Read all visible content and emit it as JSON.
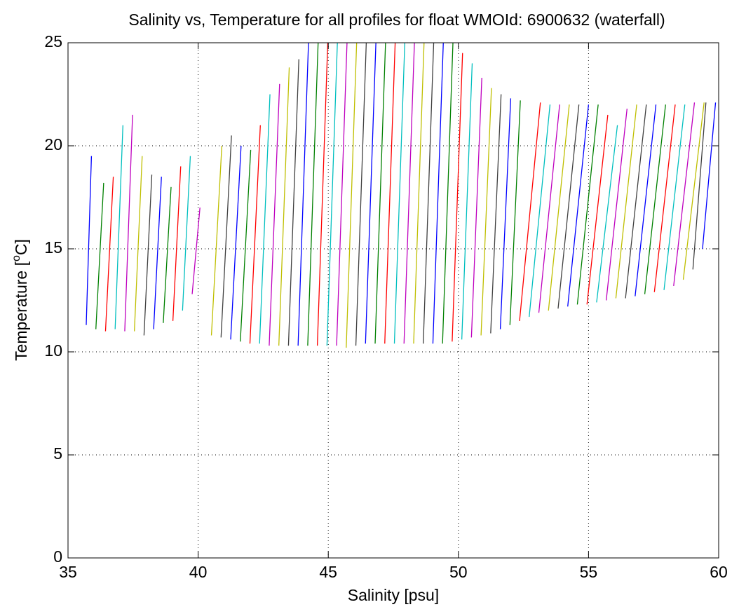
{
  "chart_data": {
    "type": "line",
    "title": "Salinity vs, Temperature for all profiles for float WMOId: 6900632 (waterfall)",
    "xlabel": "Salinity [psu]",
    "ylabel": {
      "text": "Temperature [",
      "sup": "o",
      "unit": "C]"
    },
    "xlim": [
      35,
      60
    ],
    "xticks": [
      35,
      40,
      45,
      50,
      55,
      60
    ],
    "ylim": [
      0,
      25
    ],
    "yticks": [
      0,
      5,
      10,
      15,
      20,
      25
    ],
    "grid": true,
    "series": [
      {
        "color": "#0000ff",
        "x": [
          35.7,
          35.9
        ],
        "y": [
          11.3,
          19.5
        ]
      },
      {
        "color": "#008000",
        "x": [
          36.07,
          36.37
        ],
        "y": [
          11.1,
          18.2
        ]
      },
      {
        "color": "#ff0000",
        "x": [
          36.44,
          36.74
        ],
        "y": [
          11.0,
          18.5
        ]
      },
      {
        "color": "#00bfbf",
        "x": [
          36.81,
          37.11
        ],
        "y": [
          11.1,
          21.0
        ]
      },
      {
        "color": "#bf00bf",
        "x": [
          37.18,
          37.48
        ],
        "y": [
          11.0,
          21.5
        ]
      },
      {
        "color": "#bfbf00",
        "x": [
          37.55,
          37.85
        ],
        "y": [
          11.0,
          19.5
        ]
      },
      {
        "color": "#404040",
        "x": [
          37.92,
          38.22
        ],
        "y": [
          10.8,
          18.6
        ]
      },
      {
        "color": "#0000ff",
        "x": [
          38.29,
          38.59
        ],
        "y": [
          11.1,
          18.5
        ]
      },
      {
        "color": "#008000",
        "x": [
          38.66,
          38.96
        ],
        "y": [
          11.4,
          18.0
        ]
      },
      {
        "color": "#ff0000",
        "x": [
          39.03,
          39.33
        ],
        "y": [
          11.5,
          19.0
        ]
      },
      {
        "color": "#00bfbf",
        "x": [
          39.4,
          39.7
        ],
        "y": [
          12.0,
          19.5
        ]
      },
      {
        "color": "#bf00bf",
        "x": [
          39.77,
          40.07
        ],
        "y": [
          12.8,
          17.0
        ]
      },
      {
        "color": "#bfbf00",
        "x": [
          40.51,
          40.91
        ],
        "y": [
          10.8,
          20.0
        ]
      },
      {
        "color": "#404040",
        "x": [
          40.88,
          41.28
        ],
        "y": [
          10.7,
          20.5
        ]
      },
      {
        "color": "#0000ff",
        "x": [
          41.25,
          41.65
        ],
        "y": [
          10.6,
          20.0
        ]
      },
      {
        "color": "#008000",
        "x": [
          41.62,
          42.02
        ],
        "y": [
          10.5,
          19.8
        ]
      },
      {
        "color": "#ff0000",
        "x": [
          41.99,
          42.39
        ],
        "y": [
          10.4,
          21.0
        ]
      },
      {
        "color": "#00bfbf",
        "x": [
          42.36,
          42.76
        ],
        "y": [
          10.4,
          22.5
        ]
      },
      {
        "color": "#bf00bf",
        "x": [
          42.73,
          43.13
        ],
        "y": [
          10.3,
          23.0
        ]
      },
      {
        "color": "#bfbf00",
        "x": [
          43.1,
          43.5
        ],
        "y": [
          10.3,
          23.8
        ]
      },
      {
        "color": "#404040",
        "x": [
          43.47,
          43.87
        ],
        "y": [
          10.3,
          24.2
        ]
      },
      {
        "color": "#0000ff",
        "x": [
          43.84,
          44.24
        ],
        "y": [
          10.3,
          25
        ]
      },
      {
        "color": "#008000",
        "x": [
          44.21,
          44.61
        ],
        "y": [
          10.3,
          25
        ]
      },
      {
        "color": "#ff0000",
        "x": [
          44.58,
          44.98
        ],
        "y": [
          10.3,
          25
        ]
      },
      {
        "color": "#00bfbf",
        "x": [
          44.95,
          45.35
        ],
        "y": [
          10.3,
          25
        ]
      },
      {
        "color": "#bf00bf",
        "x": [
          45.32,
          45.72
        ],
        "y": [
          10.3,
          25
        ]
      },
      {
        "color": "#bfbf00",
        "x": [
          45.69,
          46.09
        ],
        "y": [
          10.2,
          25
        ]
      },
      {
        "color": "#404040",
        "x": [
          46.06,
          46.46
        ],
        "y": [
          10.3,
          25
        ]
      },
      {
        "color": "#0000ff",
        "x": [
          46.43,
          46.83
        ],
        "y": [
          10.4,
          25
        ]
      },
      {
        "color": "#008000",
        "x": [
          46.8,
          47.2
        ],
        "y": [
          10.4,
          25
        ]
      },
      {
        "color": "#ff0000",
        "x": [
          47.17,
          47.57
        ],
        "y": [
          10.4,
          25
        ]
      },
      {
        "color": "#00bfbf",
        "x": [
          47.54,
          47.94
        ],
        "y": [
          10.4,
          25
        ]
      },
      {
        "color": "#bf00bf",
        "x": [
          47.91,
          48.31
        ],
        "y": [
          10.4,
          25
        ]
      },
      {
        "color": "#bfbf00",
        "x": [
          48.28,
          48.68
        ],
        "y": [
          10.4,
          25
        ]
      },
      {
        "color": "#404040",
        "x": [
          48.65,
          49.05
        ],
        "y": [
          10.4,
          25
        ]
      },
      {
        "color": "#0000ff",
        "x": [
          49.02,
          49.42
        ],
        "y": [
          10.4,
          25
        ]
      },
      {
        "color": "#008000",
        "x": [
          49.39,
          49.79
        ],
        "y": [
          10.4,
          25
        ]
      },
      {
        "color": "#ff0000",
        "x": [
          49.76,
          50.16
        ],
        "y": [
          10.5,
          24.5
        ]
      },
      {
        "color": "#00bfbf",
        "x": [
          50.13,
          50.53
        ],
        "y": [
          10.6,
          24.0
        ]
      },
      {
        "color": "#bf00bf",
        "x": [
          50.5,
          50.9
        ],
        "y": [
          10.7,
          23.3
        ]
      },
      {
        "color": "#bfbf00",
        "x": [
          50.87,
          51.27
        ],
        "y": [
          10.8,
          22.8
        ]
      },
      {
        "color": "#404040",
        "x": [
          51.24,
          51.64
        ],
        "y": [
          10.9,
          22.5
        ]
      },
      {
        "color": "#0000ff",
        "x": [
          51.61,
          52.01
        ],
        "y": [
          11.1,
          22.3
        ]
      },
      {
        "color": "#008000",
        "x": [
          51.98,
          52.38
        ],
        "y": [
          11.3,
          22.2
        ]
      },
      {
        "color": "#ff0000",
        "x": [
          52.35,
          53.15
        ],
        "y": [
          11.5,
          22.1
        ]
      },
      {
        "color": "#00bfbf",
        "x": [
          52.72,
          53.52
        ],
        "y": [
          11.7,
          22.0
        ]
      },
      {
        "color": "#bf00bf",
        "x": [
          53.09,
          53.89
        ],
        "y": [
          11.9,
          22.0
        ]
      },
      {
        "color": "#bfbf00",
        "x": [
          53.46,
          54.26
        ],
        "y": [
          12.0,
          22.0
        ]
      },
      {
        "color": "#404040",
        "x": [
          53.83,
          54.63
        ],
        "y": [
          12.1,
          22.0
        ]
      },
      {
        "color": "#0000ff",
        "x": [
          54.2,
          55.0
        ],
        "y": [
          12.2,
          22.0
        ]
      },
      {
        "color": "#008000",
        "x": [
          54.57,
          55.37
        ],
        "y": [
          12.3,
          22.0
        ]
      },
      {
        "color": "#ff0000",
        "x": [
          54.94,
          55.74
        ],
        "y": [
          12.3,
          21.5
        ]
      },
      {
        "color": "#00bfbf",
        "x": [
          55.31,
          56.11
        ],
        "y": [
          12.4,
          21.0
        ]
      },
      {
        "color": "#bf00bf",
        "x": [
          55.68,
          56.48
        ],
        "y": [
          12.5,
          21.8
        ]
      },
      {
        "color": "#bfbf00",
        "x": [
          56.05,
          56.85
        ],
        "y": [
          12.6,
          22.0
        ]
      },
      {
        "color": "#404040",
        "x": [
          56.42,
          57.22
        ],
        "y": [
          12.6,
          22.0
        ]
      },
      {
        "color": "#0000ff",
        "x": [
          56.79,
          57.59
        ],
        "y": [
          12.7,
          22.0
        ]
      },
      {
        "color": "#008000",
        "x": [
          57.16,
          57.96
        ],
        "y": [
          12.8,
          22.0
        ]
      },
      {
        "color": "#ff0000",
        "x": [
          57.53,
          58.33
        ],
        "y": [
          12.9,
          22.0
        ]
      },
      {
        "color": "#00bfbf",
        "x": [
          57.9,
          58.7
        ],
        "y": [
          13.0,
          22.0
        ]
      },
      {
        "color": "#bf00bf",
        "x": [
          58.27,
          59.07
        ],
        "y": [
          13.2,
          22.1
        ]
      },
      {
        "color": "#bfbf00",
        "x": [
          58.64,
          59.44
        ],
        "y": [
          13.5,
          22.1
        ]
      },
      {
        "color": "#404040",
        "x": [
          59.01,
          59.51
        ],
        "y": [
          14.0,
          22.1
        ]
      },
      {
        "color": "#0000ff",
        "x": [
          59.38,
          59.88
        ],
        "y": [
          15.0,
          22.1
        ]
      }
    ]
  }
}
